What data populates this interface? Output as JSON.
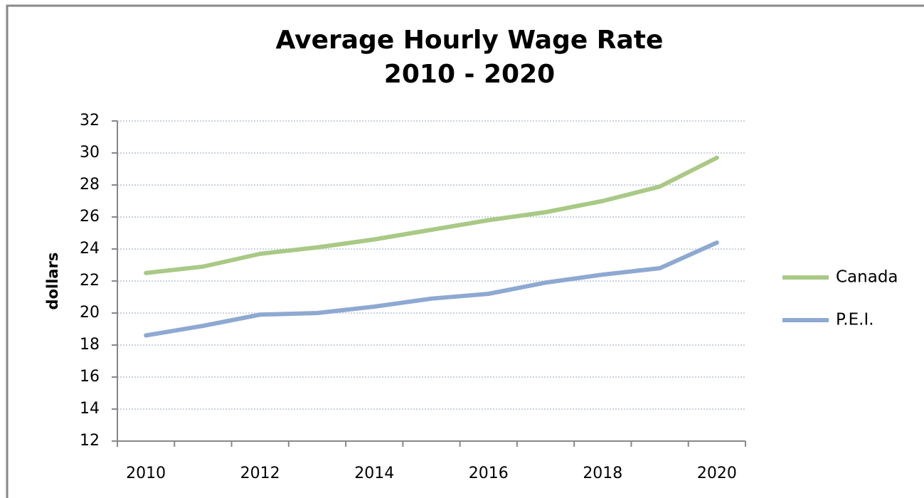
{
  "chart_data": {
    "type": "line",
    "title": [
      "Average Hourly Wage Rate",
      "2010 - 2020"
    ],
    "y_label": "dollars",
    "categories": [
      "2010",
      null,
      "2012",
      null,
      "2014",
      null,
      "2016",
      null,
      "2018",
      null,
      "2020"
    ],
    "series": [
      {
        "name": "Canada",
        "color": "#a9c985",
        "values": [
          22.5,
          22.9,
          23.7,
          24.1,
          24.6,
          25.2,
          25.8,
          26.3,
          27.0,
          27.9,
          29.7
        ]
      },
      {
        "name": "P.E.I.",
        "color": "#8ea9d1",
        "values": [
          18.6,
          19.2,
          19.9,
          20.0,
          20.4,
          20.9,
          21.2,
          21.9,
          22.4,
          22.8,
          24.4
        ]
      }
    ],
    "ylim": [
      12,
      32
    ],
    "yticks": [
      12,
      14,
      16,
      18,
      20,
      22,
      24,
      26,
      28,
      30,
      32
    ],
    "grid": true,
    "legend": "right"
  }
}
